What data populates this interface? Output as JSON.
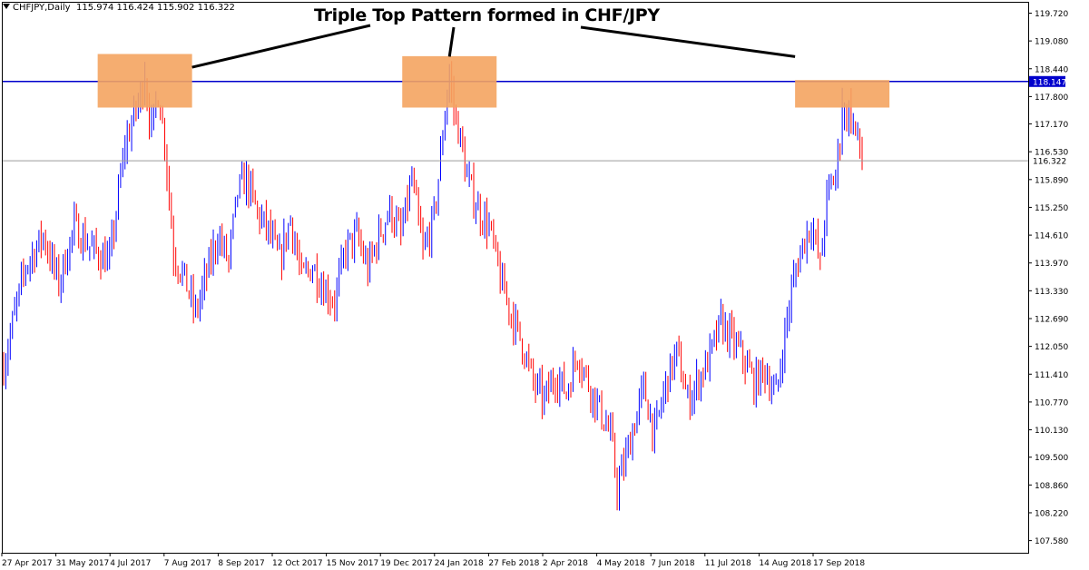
{
  "header": {
    "symbol": "CHFJPY,Daily",
    "ohlc": "115.974 116.424 115.902 116.322"
  },
  "annotation": {
    "title": "Triple Top Pattern formed in CHF/JPY"
  },
  "colors": {
    "bull": "#0000ff",
    "bear": "#ff0000",
    "resistance_line": "#0000cc",
    "current_price_line": "#9a9a9a",
    "highlight_box": "#f4a460"
  },
  "chart_data": {
    "type": "candlestick",
    "symbol": "CHFJPY",
    "timeframe": "Daily",
    "ylim": [
      107.3,
      119.96
    ],
    "y_ticks": [
      "119.720",
      "119.080",
      "118.440",
      "117.800",
      "117.170",
      "116.530",
      "115.890",
      "115.250",
      "114.610",
      "113.970",
      "113.330",
      "112.690",
      "112.050",
      "111.410",
      "110.770",
      "110.130",
      "109.500",
      "108.860",
      "108.220",
      "107.580"
    ],
    "x_ticks": [
      "27 Apr 2017",
      "31 May 2017",
      "4 Jul 2017",
      "7 Aug 2017",
      "8 Sep 2017",
      "12 Oct 2017",
      "15 Nov 2017",
      "19 Dec 2017",
      "24 Jan 2018",
      "27 Feb 2018",
      "2 Apr 2018",
      "4 May 2018",
      "7 Jun 2018",
      "11 Jul 2018",
      "14 Aug 2018",
      "17 Sep 2018"
    ],
    "resistance_level": {
      "value": 118.147,
      "label": "118.147"
    },
    "current_price": {
      "value": 116.322,
      "label": "116.322"
    },
    "highlighted_tops": [
      {
        "date": "4 Jul 2017",
        "high": 118.6
      },
      {
        "date": "24 Jan 2018",
        "high": 118.55
      },
      {
        "date": "17 Sep 2018",
        "high": 118.0
      }
    ],
    "waypoints": [
      [
        0,
        111.6
      ],
      [
        5,
        112.8
      ],
      [
        10,
        113.9
      ],
      [
        18,
        114.6
      ],
      [
        25,
        113.5
      ],
      [
        32,
        114.8
      ],
      [
        40,
        114.3
      ],
      [
        48,
        114.0
      ],
      [
        55,
        116.7
      ],
      [
        60,
        117.5
      ],
      [
        64,
        118.2
      ],
      [
        67,
        117.0
      ],
      [
        70,
        117.9
      ],
      [
        73,
        116.8
      ],
      [
        77,
        114.2
      ],
      [
        82,
        113.6
      ],
      [
        87,
        112.8
      ],
      [
        92,
        113.7
      ],
      [
        97,
        114.6
      ],
      [
        102,
        114.0
      ],
      [
        106,
        115.6
      ],
      [
        110,
        115.9
      ],
      [
        115,
        115.1
      ],
      [
        120,
        114.7
      ],
      [
        125,
        114.0
      ],
      [
        130,
        115.0
      ],
      [
        135,
        113.6
      ],
      [
        140,
        113.9
      ],
      [
        145,
        113.4
      ],
      [
        150,
        113.1
      ],
      [
        155,
        114.3
      ],
      [
        160,
        114.6
      ],
      [
        165,
        113.8
      ],
      [
        170,
        114.6
      ],
      [
        175,
        115.2
      ],
      [
        180,
        114.6
      ],
      [
        185,
        115.9
      ],
      [
        190,
        114.2
      ],
      [
        195,
        115.0
      ],
      [
        198,
        116.4
      ],
      [
        200,
        117.5
      ],
      [
        202,
        118.3
      ],
      [
        204,
        117.5
      ],
      [
        207,
        116.8
      ],
      [
        210,
        115.9
      ],
      [
        215,
        115.2
      ],
      [
        220,
        114.8
      ],
      [
        225,
        113.6
      ],
      [
        230,
        112.8
      ],
      [
        235,
        112.1
      ],
      [
        240,
        111.2
      ],
      [
        245,
        110.8
      ],
      [
        250,
        111.4
      ],
      [
        255,
        111.0
      ],
      [
        260,
        111.9
      ],
      [
        265,
        111.2
      ],
      [
        270,
        110.6
      ],
      [
        275,
        110.0
      ],
      [
        278,
        108.8
      ],
      [
        281,
        109.3
      ],
      [
        286,
        110.3
      ],
      [
        290,
        111.1
      ],
      [
        295,
        110.0
      ],
      [
        300,
        111.2
      ],
      [
        305,
        111.9
      ],
      [
        310,
        110.8
      ],
      [
        315,
        111.3
      ],
      [
        320,
        111.8
      ],
      [
        325,
        112.6
      ],
      [
        330,
        112.2
      ],
      [
        335,
        111.8
      ],
      [
        340,
        111.2
      ],
      [
        345,
        111.5
      ],
      [
        350,
        110.9
      ],
      [
        355,
        112.7
      ],
      [
        358,
        113.6
      ],
      [
        362,
        114.4
      ],
      [
        366,
        114.9
      ],
      [
        370,
        113.9
      ],
      [
        373,
        115.5
      ],
      [
        377,
        116.0
      ],
      [
        380,
        117.3
      ],
      [
        383,
        117.5
      ],
      [
        386,
        117.0
      ],
      [
        389,
        116.3
      ]
    ]
  }
}
